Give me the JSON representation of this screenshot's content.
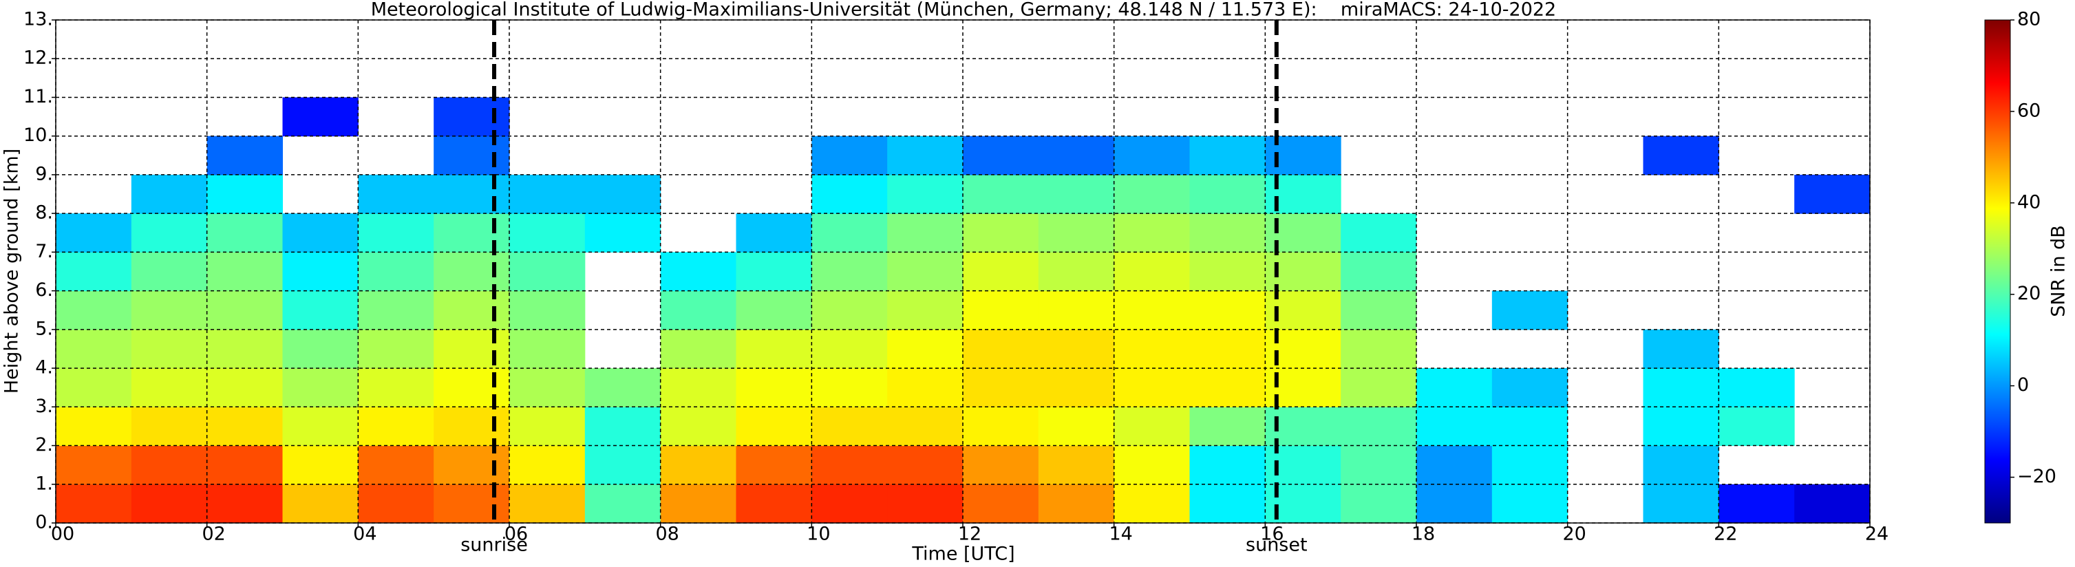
{
  "chart_data": {
    "type": "heatmap",
    "title": "Meteorological Institute of Ludwig-Maximilians-Universität (München, Germany; 48.148 N / 11.573 E):    miraMACS: 24-10-2022",
    "x_label": "Time [UTC]",
    "y_label": "Height above ground [km]",
    "xbins": [
      0,
      1,
      2,
      3,
      4,
      5,
      6,
      7,
      8,
      9,
      10,
      11,
      12,
      13,
      14,
      15,
      16,
      17,
      18,
      19,
      20,
      21,
      22,
      23,
      24
    ],
    "ybins": [
      0,
      1,
      2,
      3,
      4,
      5,
      6,
      7,
      8,
      9,
      10,
      11,
      12,
      13
    ],
    "z": [
      [
        60,
        62,
        62,
        45,
        58,
        55,
        45,
        20,
        50,
        60,
        62,
        62,
        55,
        50,
        40,
        10,
        15,
        20,
        0,
        10,
        null,
        5,
        -15,
        -20
      ],
      [
        55,
        58,
        58,
        40,
        55,
        50,
        40,
        15,
        45,
        55,
        58,
        58,
        50,
        45,
        38,
        10,
        15,
        20,
        0,
        10,
        null,
        5,
        null,
        null
      ],
      [
        40,
        42,
        42,
        35,
        40,
        42,
        35,
        15,
        35,
        40,
        42,
        42,
        40,
        38,
        35,
        25,
        20,
        20,
        10,
        10,
        null,
        10,
        15,
        null
      ],
      [
        32,
        35,
        35,
        30,
        35,
        38,
        30,
        25,
        35,
        38,
        38,
        40,
        42,
        42,
        40,
        40,
        38,
        30,
        10,
        5,
        null,
        10,
        10,
        null
      ],
      [
        30,
        32,
        32,
        25,
        30,
        35,
        28,
        null,
        30,
        35,
        35,
        38,
        42,
        42,
        40,
        40,
        38,
        30,
        null,
        null,
        null,
        5,
        null,
        null
      ],
      [
        25,
        28,
        28,
        15,
        25,
        30,
        25,
        null,
        20,
        25,
        30,
        32,
        38,
        38,
        38,
        38,
        35,
        25,
        null,
        5,
        null,
        null,
        null,
        null
      ],
      [
        15,
        22,
        25,
        10,
        20,
        25,
        20,
        null,
        10,
        15,
        25,
        28,
        35,
        32,
        35,
        32,
        30,
        20,
        null,
        null,
        null,
        null,
        null,
        null
      ],
      [
        5,
        15,
        20,
        5,
        15,
        20,
        15,
        10,
        null,
        5,
        20,
        25,
        30,
        28,
        30,
        28,
        25,
        15,
        null,
        null,
        null,
        null,
        null,
        null
      ],
      [
        null,
        5,
        10,
        null,
        5,
        5,
        5,
        5,
        null,
        null,
        10,
        15,
        20,
        20,
        22,
        20,
        15,
        null,
        null,
        null,
        null,
        null,
        null,
        -10
      ],
      [
        null,
        null,
        -5,
        null,
        null,
        -5,
        null,
        null,
        null,
        null,
        0,
        5,
        -5,
        -5,
        0,
        5,
        0,
        null,
        null,
        null,
        null,
        -10,
        null,
        null
      ],
      [
        null,
        null,
        null,
        -15,
        null,
        -10,
        null,
        null,
        null,
        null,
        null,
        null,
        null,
        null,
        null,
        null,
        null,
        null,
        null,
        null,
        null,
        null,
        null,
        null
      ],
      [
        null,
        null,
        null,
        null,
        null,
        null,
        null,
        null,
        null,
        null,
        null,
        null,
        null,
        null,
        null,
        null,
        null,
        null,
        null,
        null,
        null,
        null,
        null,
        null
      ],
      [
        null,
        null,
        null,
        null,
        null,
        null,
        null,
        null,
        null,
        null,
        null,
        null,
        null,
        null,
        null,
        null,
        null,
        null,
        null,
        null,
        null,
        null,
        null,
        null
      ]
    ],
    "xlim": [
      0,
      24
    ],
    "xticks": [
      {
        "value": 0,
        "label": "00"
      },
      {
        "value": 2,
        "label": "02"
      },
      {
        "value": 4,
        "label": "04"
      },
      {
        "value": 6,
        "label": "06"
      },
      {
        "value": 8,
        "label": "08"
      },
      {
        "value": 10,
        "label": "10"
      },
      {
        "value": 12,
        "label": "12"
      },
      {
        "value": 14,
        "label": "14"
      },
      {
        "value": 16,
        "label": "16"
      },
      {
        "value": 18,
        "label": "18"
      },
      {
        "value": 20,
        "label": "20"
      },
      {
        "value": 22,
        "label": "22"
      },
      {
        "value": 24,
        "label": "24"
      }
    ],
    "ylim": [
      0,
      13
    ],
    "yticks": [
      {
        "value": 0,
        "label": "0."
      },
      {
        "value": 1,
        "label": "1."
      },
      {
        "value": 2,
        "label": "2."
      },
      {
        "value": 3,
        "label": "3."
      },
      {
        "value": 4,
        "label": "4."
      },
      {
        "value": 5,
        "label": "5."
      },
      {
        "value": 6,
        "label": "6."
      },
      {
        "value": 7,
        "label": "7."
      },
      {
        "value": 8,
        "label": "8."
      },
      {
        "value": 9,
        "label": "9."
      },
      {
        "value": 10,
        "label": "10."
      },
      {
        "value": 11,
        "label": "11."
      },
      {
        "value": 12,
        "label": "12."
      },
      {
        "value": 13,
        "label": "13."
      }
    ],
    "grid": true,
    "annotations": [
      {
        "text": "sunrise",
        "x": 5.8
      },
      {
        "text": "sunset",
        "x": 16.15
      }
    ],
    "colorbar": {
      "label": "SNR in dB",
      "colormap": "jet",
      "lim": [
        -30,
        80
      ],
      "ticks": [
        {
          "value": -20,
          "label": "−20"
        },
        0,
        20,
        40,
        60,
        80
      ]
    }
  }
}
